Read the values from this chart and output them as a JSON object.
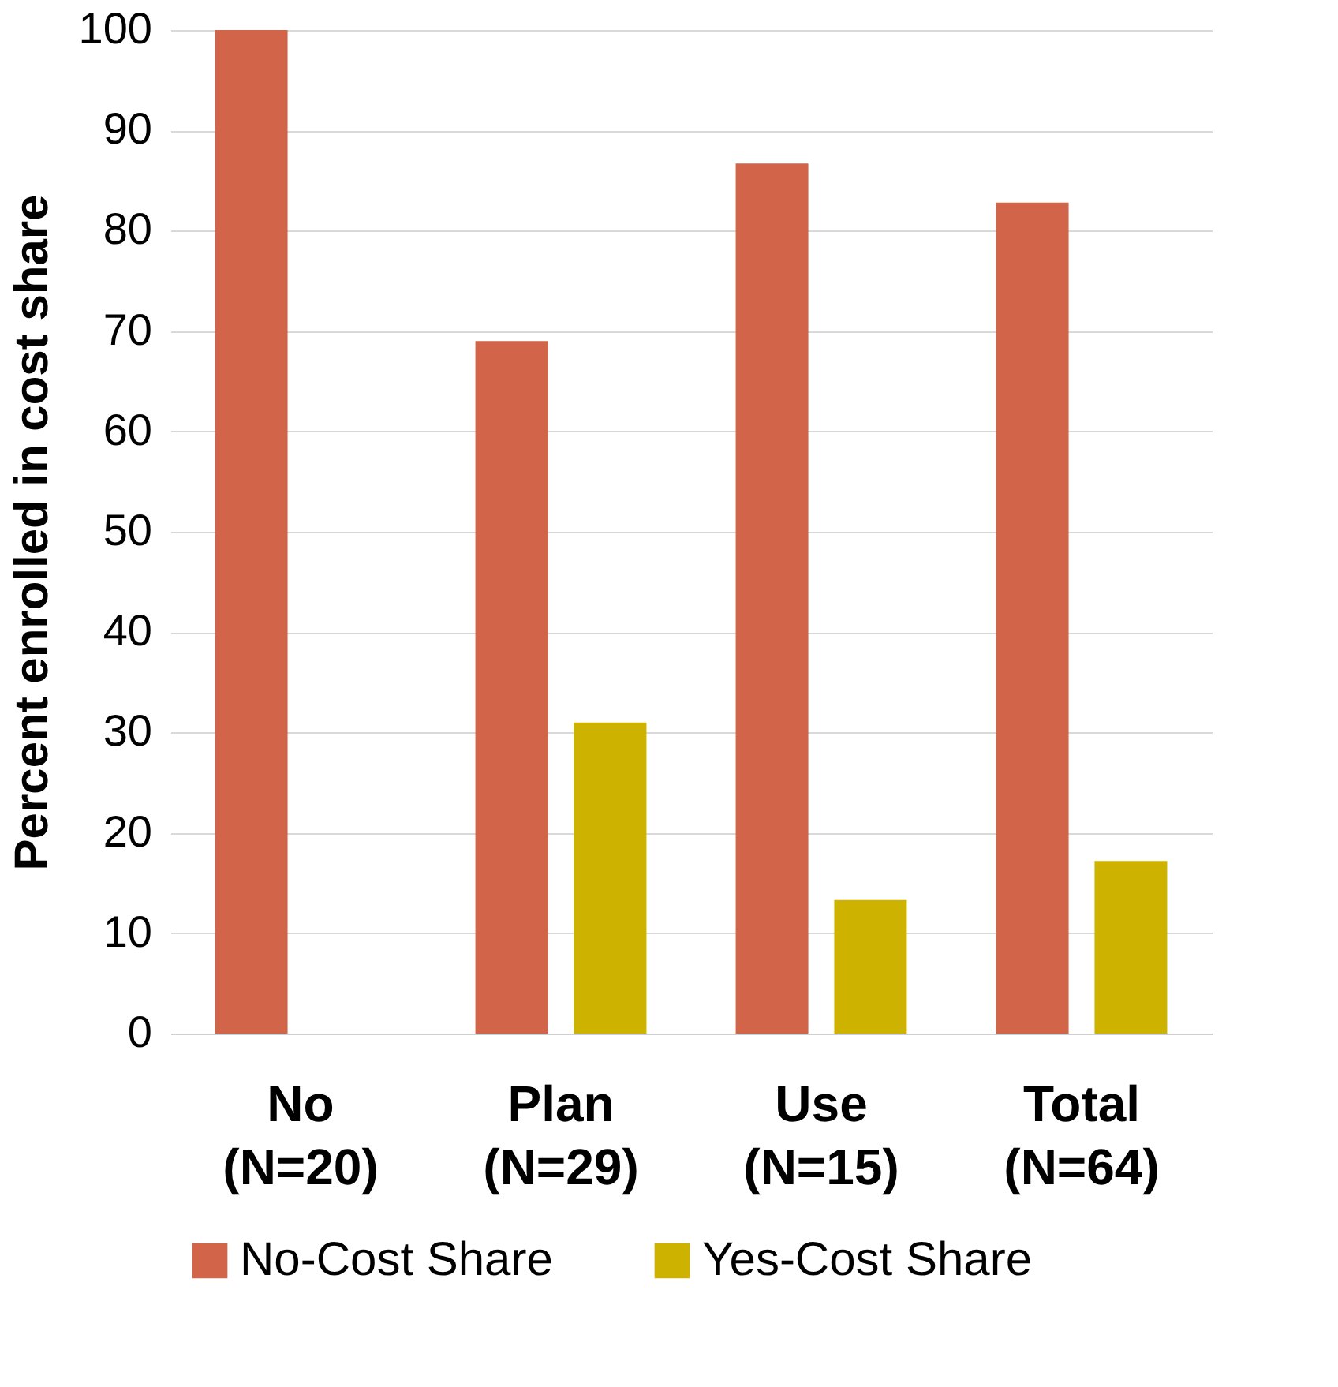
{
  "chart_data": {
    "type": "bar",
    "ylabel": "Percent enrolled in cost share",
    "categories": [
      "No (N=20)",
      "Plan (N=29)",
      "Use (N=15)",
      "Total (N=64)"
    ],
    "series": [
      {
        "name": "No-Cost Share",
        "color": "#d2644a",
        "values": [
          100,
          69,
          86.7,
          82.8
        ]
      },
      {
        "name": "Yes-Cost Share",
        "color": "#cdb300",
        "values": [
          0,
          31,
          13.3,
          17.2
        ]
      }
    ],
    "ylim": [
      0,
      100
    ],
    "yticks": [
      0,
      10,
      20,
      30,
      40,
      50,
      60,
      70,
      80,
      90,
      100
    ],
    "grid": "y",
    "legend": "bottom"
  }
}
